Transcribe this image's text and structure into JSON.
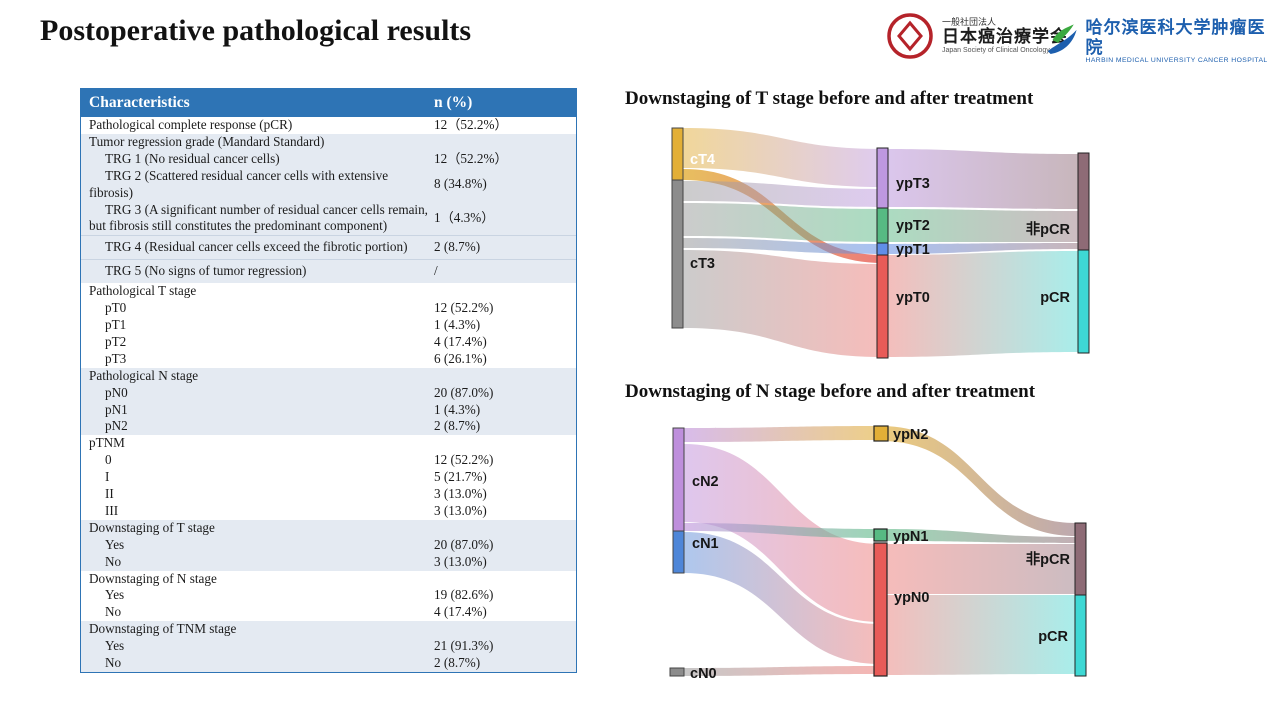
{
  "slide": {
    "title": "Postoperative pathological results"
  },
  "logos": {
    "jsco": {
      "line1": "一般社団法人",
      "line2": "日本癌治療学会",
      "line3": "Japan Society of Clinical Oncology",
      "emblem_color": "#b5232a"
    },
    "harbin": {
      "line1": "哈尔滨医科大学肿瘤医院",
      "line2": "HARBIN MEDICAL UNIVERSITY CANCER HOSPITAL",
      "brand_color": "#1d5fae"
    }
  },
  "table": {
    "headers": [
      "Characteristics",
      "n (%)"
    ],
    "header_bg": "#2e74b5",
    "shade_bg": "#e4eaf2",
    "rows": [
      {
        "label": "Pathological complete response (pCR)",
        "value": "12（52.2%）",
        "indent": 0,
        "shade": "a"
      },
      {
        "label": "Tumor regression grade (Mandard Standard)",
        "value": "",
        "indent": 0,
        "shade": "b"
      },
      {
        "label": "TRG 1 (No residual cancer cells)",
        "value": "12（52.2%）",
        "indent": 1,
        "shade": "b"
      },
      {
        "label": "TRG 2 (Scattered residual cancer cells with extensive fibrosis)",
        "value": "8 (34.8%)",
        "indent": 1,
        "shade": "b"
      },
      {
        "label": "TRG 3 (A significant number of residual cancer cells remain, but fibrosis still constitutes the predominant component)",
        "value": "1（4.3%）",
        "indent": 1,
        "shade": "b"
      },
      {
        "label": "TRG 4 (Residual cancer cells exceed the fibrotic portion)",
        "value": "2 (8.7%)",
        "indent": 1,
        "shade": "b",
        "rule": true,
        "pad": true
      },
      {
        "label": "TRG 5 (No signs of tumor regression)",
        "value": "/",
        "indent": 1,
        "shade": "b",
        "rule": true,
        "pad": true
      },
      {
        "label": "Pathological T stage",
        "value": "",
        "indent": 0,
        "shade": "a"
      },
      {
        "label": "pT0",
        "value": "12 (52.2%)",
        "indent": 1,
        "shade": "a"
      },
      {
        "label": "pT1",
        "value": "1 (4.3%)",
        "indent": 1,
        "shade": "a"
      },
      {
        "label": "pT2",
        "value": "4 (17.4%)",
        "indent": 1,
        "shade": "a"
      },
      {
        "label": "pT3",
        "value": "6 (26.1%)",
        "indent": 1,
        "shade": "a"
      },
      {
        "label": "Pathological N stage",
        "value": "",
        "indent": 0,
        "shade": "b"
      },
      {
        "label": "pN0",
        "value": "20 (87.0%)",
        "indent": 1,
        "shade": "b"
      },
      {
        "label": "pN1",
        "value": "1 (4.3%)",
        "indent": 1,
        "shade": "b"
      },
      {
        "label": "pN2",
        "value": "2 (8.7%)",
        "indent": 1,
        "shade": "b"
      },
      {
        "label": "pTNM",
        "value": "",
        "indent": 0,
        "shade": "a"
      },
      {
        "label": "0",
        "value": "12 (52.2%)",
        "indent": 1,
        "shade": "a"
      },
      {
        "label": "I",
        "value": "5 (21.7%)",
        "indent": 1,
        "shade": "a"
      },
      {
        "label": "II",
        "value": "3 (13.0%)",
        "indent": 1,
        "shade": "a"
      },
      {
        "label": "III",
        "value": "3 (13.0%)",
        "indent": 1,
        "shade": "a"
      },
      {
        "label": "Downstaging of T stage",
        "value": "",
        "indent": 0,
        "shade": "b"
      },
      {
        "label": "Yes",
        "value": "20 (87.0%)",
        "indent": 1,
        "shade": "b"
      },
      {
        "label": "No",
        "value": "3 (13.0%)",
        "indent": 1,
        "shade": "b"
      },
      {
        "label": "Downstaging of N stage",
        "value": "",
        "indent": 0,
        "shade": "a"
      },
      {
        "label": "Yes",
        "value": "19 (82.6%)",
        "indent": 1,
        "shade": "a"
      },
      {
        "label": "No",
        "value": "4 (17.4%)",
        "indent": 1,
        "shade": "a"
      },
      {
        "label": "Downstaging of TNM stage",
        "value": "",
        "indent": 0,
        "shade": "b"
      },
      {
        "label": "Yes",
        "value": "21 (91.3%)",
        "indent": 1,
        "shade": "b"
      },
      {
        "label": "No",
        "value": "2 (8.7%)",
        "indent": 1,
        "shade": "b"
      }
    ]
  },
  "chart_data": [
    {
      "type": "sankey",
      "title": "Downstaging of T stage before and after treatment",
      "nodes": {
        "left": [
          {
            "label": "cT4",
            "n": 5,
            "color": "#e2af37"
          },
          {
            "label": "cT3",
            "n": 18,
            "color": "#8c8c8c"
          }
        ],
        "middle": [
          {
            "label": "ypT3",
            "n": 6,
            "color": "#be98e0"
          },
          {
            "label": "ypT2",
            "n": 4,
            "color": "#57ba83"
          },
          {
            "label": "ypT1",
            "n": 1,
            "color": "#608ee8"
          },
          {
            "label": "ypT0",
            "n": 12,
            "color": "#e85b58"
          }
        ],
        "right": [
          {
            "label": "非pCR",
            "n": 11,
            "color": "#8e6b76"
          },
          {
            "label": "pCR",
            "n": 12,
            "color": "#3ed8d4"
          }
        ]
      },
      "flows": [
        {
          "from": "cT4",
          "to": "ypT3",
          "n": 4
        },
        {
          "from": "cT4",
          "to": "ypT0",
          "n": 1
        },
        {
          "from": "cT3",
          "to": "ypT3",
          "n": 2
        },
        {
          "from": "cT3",
          "to": "ypT2",
          "n": 4
        },
        {
          "from": "cT3",
          "to": "ypT1",
          "n": 1
        },
        {
          "from": "cT3",
          "to": "ypT0",
          "n": 11
        },
        {
          "from": "ypT3",
          "to": "非pCR",
          "n": 6
        },
        {
          "from": "ypT2",
          "to": "非pCR",
          "n": 4
        },
        {
          "from": "ypT1",
          "to": "非pCR",
          "n": 1
        },
        {
          "from": "ypT0",
          "to": "pCR",
          "n": 12
        }
      ]
    },
    {
      "type": "sankey",
      "title": "Downstaging of N stage before and after treatment",
      "nodes": {
        "left": [
          {
            "label": "cN2",
            "n": 16,
            "color": "#be8fdc"
          },
          {
            "label": "cN1",
            "n": 6,
            "color": "#4e86d8"
          },
          {
            "label": "cN0",
            "n": 1,
            "color": "#8c8c8c"
          }
        ],
        "middle": [
          {
            "label": "ypN2",
            "n": 2,
            "color": "#e2af37"
          },
          {
            "label": "ypN1",
            "n": 1,
            "color": "#57ba83"
          },
          {
            "label": "ypN0",
            "n": 20,
            "color": "#e85b58"
          }
        ],
        "right": [
          {
            "label": "非pCR",
            "n": 11,
            "color": "#8e6b76"
          },
          {
            "label": "pCR",
            "n": 12,
            "color": "#3ed8d4"
          }
        ]
      },
      "flows": [
        {
          "from": "cN2",
          "to": "ypN2",
          "n": 2
        },
        {
          "from": "cN2",
          "to": "ypN1",
          "n": 1
        },
        {
          "from": "cN2",
          "to": "ypN0",
          "n": 13
        },
        {
          "from": "cN1",
          "to": "ypN0",
          "n": 6
        },
        {
          "from": "cN0",
          "to": "ypN0",
          "n": 1
        },
        {
          "from": "ypN2",
          "to": "非pCR",
          "n": 2
        },
        {
          "from": "ypN1",
          "to": "非pCR",
          "n": 1
        },
        {
          "from": "ypN0",
          "to": "非pCR",
          "n": 8
        },
        {
          "from": "ypN0",
          "to": "pCR",
          "n": 12
        }
      ]
    }
  ]
}
